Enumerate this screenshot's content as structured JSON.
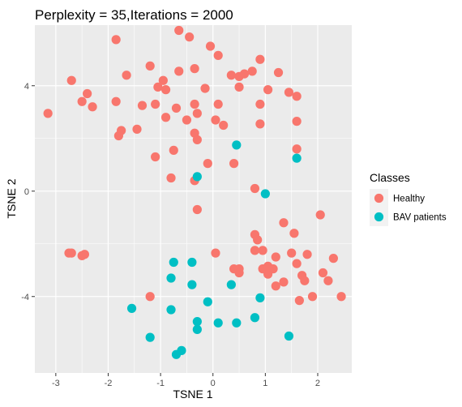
{
  "chart_data": {
    "type": "scatter",
    "title": "Perplexity = 35,Iterations = 2000",
    "xlabel": "TSNE 1",
    "ylabel": "TSNE 2",
    "xlim": [
      -3.4,
      2.65
    ],
    "ylim": [
      -6.9,
      6.3
    ],
    "x_ticks": [
      -3,
      -2,
      -1,
      0,
      1,
      2
    ],
    "x_tick_labels": [
      "-3",
      "-2",
      "-1",
      "0",
      "1",
      "2"
    ],
    "y_ticks": [
      -4,
      0,
      4
    ],
    "y_tick_labels": [
      "-4",
      "0",
      "4"
    ],
    "grid": true,
    "legend_position": "right",
    "legend_title": "Classes",
    "series": [
      {
        "name": "Healthy",
        "color": "#F8766D",
        "points": [
          [
            -3.15,
            2.95
          ],
          [
            -2.7,
            4.2
          ],
          [
            -2.5,
            3.4
          ],
          [
            -2.4,
            3.7
          ],
          [
            -2.3,
            3.2
          ],
          [
            -1.85,
            5.75
          ],
          [
            -1.85,
            3.4
          ],
          [
            -1.8,
            2.1
          ],
          [
            -1.75,
            2.3
          ],
          [
            -1.65,
            4.4
          ],
          [
            -1.45,
            2.35
          ],
          [
            -1.35,
            3.25
          ],
          [
            -1.2,
            4.75
          ],
          [
            -1.1,
            3.3
          ],
          [
            -1.05,
            3.95
          ],
          [
            -0.95,
            4.2
          ],
          [
            -0.9,
            3.85
          ],
          [
            -0.9,
            2.8
          ],
          [
            -0.75,
            1.55
          ],
          [
            -0.7,
            3.15
          ],
          [
            -0.65,
            4.55
          ],
          [
            -0.65,
            6.1
          ],
          [
            -0.5,
            2.7
          ],
          [
            -0.45,
            5.85
          ],
          [
            -0.35,
            4.65
          ],
          [
            -0.35,
            3.3
          ],
          [
            -0.35,
            2.2
          ],
          [
            -0.3,
            2.95
          ],
          [
            -0.3,
            1.95
          ],
          [
            -0.15,
            3.9
          ],
          [
            -0.05,
            5.5
          ],
          [
            0.05,
            2.7
          ],
          [
            0.1,
            3.3
          ],
          [
            0.1,
            5.15
          ],
          [
            0.2,
            2.5
          ],
          [
            0.35,
            4.4
          ],
          [
            0.5,
            3.95
          ],
          [
            0.5,
            4.35
          ],
          [
            0.6,
            4.45
          ],
          [
            0.75,
            4.55
          ],
          [
            0.9,
            5.0
          ],
          [
            0.9,
            3.3
          ],
          [
            0.9,
            2.55
          ],
          [
            1.05,
            3.85
          ],
          [
            1.25,
            4.5
          ],
          [
            1.45,
            3.75
          ],
          [
            1.6,
            3.6
          ],
          [
            1.6,
            2.65
          ],
          [
            1.6,
            1.6
          ],
          [
            -1.1,
            1.3
          ],
          [
            -0.8,
            0.5
          ],
          [
            -0.35,
            0.4
          ],
          [
            -0.1,
            1.05
          ],
          [
            0.4,
            1.05
          ],
          [
            0.8,
            0.1
          ],
          [
            -0.3,
            -0.7
          ],
          [
            1.35,
            -1.2
          ],
          [
            2.05,
            -0.9
          ],
          [
            1.55,
            -1.6
          ],
          [
            -2.75,
            -2.35
          ],
          [
            -2.7,
            -2.35
          ],
          [
            -2.5,
            -2.45
          ],
          [
            -2.45,
            -2.4
          ],
          [
            0.05,
            -2.35
          ],
          [
            -1.2,
            -4.0
          ],
          [
            0.8,
            -1.65
          ],
          [
            0.85,
            -1.85
          ],
          [
            0.95,
            -2.25
          ],
          [
            1.2,
            -2.5
          ],
          [
            0.8,
            -2.25
          ],
          [
            0.4,
            -2.95
          ],
          [
            0.5,
            -2.95
          ],
          [
            0.5,
            -3.1
          ],
          [
            0.95,
            -2.95
          ],
          [
            1.05,
            -2.85
          ],
          [
            1.05,
            -3.15
          ],
          [
            1.15,
            -2.95
          ],
          [
            1.2,
            -3.6
          ],
          [
            1.5,
            -2.35
          ],
          [
            1.6,
            -2.75
          ],
          [
            1.7,
            -3.2
          ],
          [
            1.8,
            -2.4
          ],
          [
            1.35,
            -3.45
          ],
          [
            1.75,
            -3.4
          ],
          [
            1.65,
            -4.15
          ],
          [
            1.9,
            -4.0
          ],
          [
            2.1,
            -3.1
          ],
          [
            2.2,
            -3.4
          ],
          [
            2.3,
            -2.55
          ],
          [
            2.45,
            -4.0
          ]
        ]
      },
      {
        "name": "BAV patients",
        "color": "#00BFC4",
        "points": [
          [
            0.45,
            1.75
          ],
          [
            1.6,
            1.25
          ],
          [
            -0.3,
            0.55
          ],
          [
            1.0,
            -0.1
          ],
          [
            -0.75,
            -2.7
          ],
          [
            -0.4,
            -2.7
          ],
          [
            -0.8,
            -3.3
          ],
          [
            -0.4,
            -3.55
          ],
          [
            0.35,
            -3.55
          ],
          [
            0.9,
            -4.05
          ],
          [
            -1.55,
            -4.45
          ],
          [
            -0.8,
            -4.5
          ],
          [
            -0.1,
            -4.2
          ],
          [
            -0.3,
            -4.95
          ],
          [
            0.1,
            -5.0
          ],
          [
            0.45,
            -5.0
          ],
          [
            0.8,
            -4.8
          ],
          [
            -0.3,
            -5.25
          ],
          [
            -1.2,
            -5.55
          ],
          [
            1.45,
            -5.5
          ],
          [
            -0.6,
            -6.05
          ],
          [
            -0.7,
            -6.2
          ]
        ]
      }
    ]
  }
}
